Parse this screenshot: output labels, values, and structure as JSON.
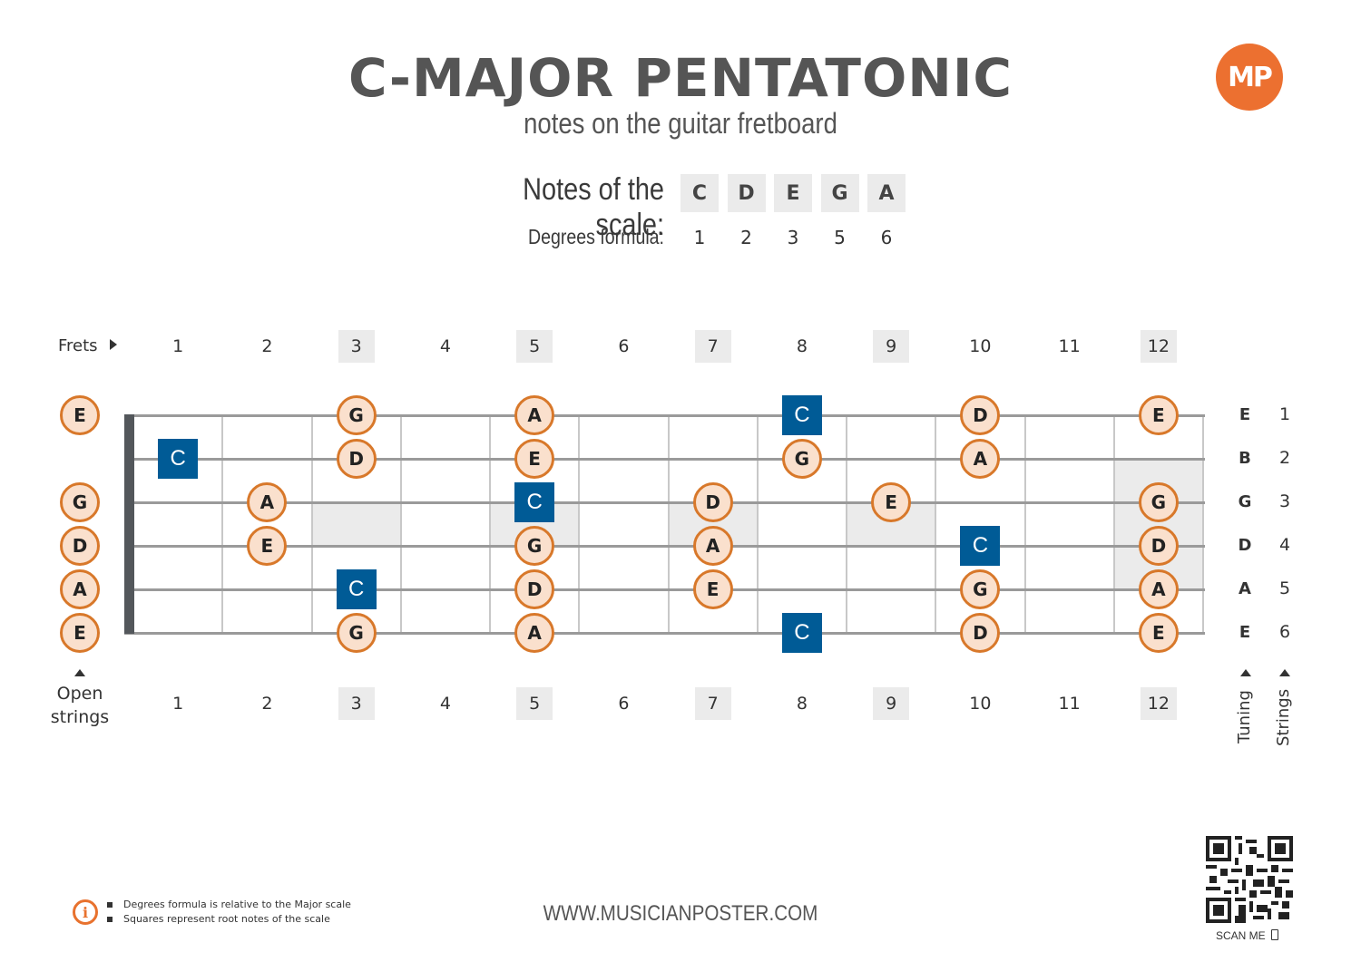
{
  "header": {
    "title": "C-MAJOR PENTATONIC",
    "subtitle": "notes on the guitar fretboard",
    "logo_text": "MP",
    "brand_color": "#ec7030"
  },
  "scale": {
    "notes_label": "Notes of the scale:",
    "degrees_label": "Degrees formula:",
    "notes": [
      "C",
      "D",
      "E",
      "G",
      "A"
    ],
    "degrees": [
      "1",
      "2",
      "3",
      "5",
      "6"
    ]
  },
  "fretboard": {
    "frets_label": "Frets",
    "fret_numbers": [
      "1",
      "2",
      "3",
      "4",
      "5",
      "6",
      "7",
      "8",
      "9",
      "10",
      "11",
      "12"
    ],
    "marked_frets": [
      3,
      5,
      7,
      9,
      12
    ],
    "open_strings_label_line1": "Open",
    "open_strings_label_line2": "strings",
    "open_strings": [
      "E",
      "",
      "G",
      "D",
      "A",
      "E"
    ],
    "tuning_label": "Tuning",
    "strings_label": "Strings",
    "tuning": [
      "E",
      "B",
      "G",
      "D",
      "A",
      "E"
    ],
    "string_numbers": [
      "1",
      "2",
      "3",
      "4",
      "5",
      "6"
    ],
    "colors": {
      "root": "#005b96",
      "note_fill": "#fae0cd",
      "note_border": "#d8782a"
    },
    "positions": [
      {
        "string": 1,
        "notes": [
          {
            "fret": 3,
            "note": "G"
          },
          {
            "fret": 5,
            "note": "A"
          },
          {
            "fret": 8,
            "note": "C",
            "root": true
          },
          {
            "fret": 10,
            "note": "D"
          },
          {
            "fret": 12,
            "note": "E"
          }
        ]
      },
      {
        "string": 2,
        "notes": [
          {
            "fret": 1,
            "note": "C",
            "root": true
          },
          {
            "fret": 3,
            "note": "D"
          },
          {
            "fret": 5,
            "note": "E"
          },
          {
            "fret": 8,
            "note": "G"
          },
          {
            "fret": 10,
            "note": "A"
          }
        ]
      },
      {
        "string": 3,
        "notes": [
          {
            "fret": 2,
            "note": "A"
          },
          {
            "fret": 5,
            "note": "C",
            "root": true
          },
          {
            "fret": 7,
            "note": "D"
          },
          {
            "fret": 9,
            "note": "E"
          },
          {
            "fret": 12,
            "note": "G"
          }
        ]
      },
      {
        "string": 4,
        "notes": [
          {
            "fret": 2,
            "note": "E"
          },
          {
            "fret": 5,
            "note": "G"
          },
          {
            "fret": 7,
            "note": "A"
          },
          {
            "fret": 10,
            "note": "C",
            "root": true
          },
          {
            "fret": 12,
            "note": "D"
          }
        ]
      },
      {
        "string": 5,
        "notes": [
          {
            "fret": 3,
            "note": "C",
            "root": true
          },
          {
            "fret": 5,
            "note": "D"
          },
          {
            "fret": 7,
            "note": "E"
          },
          {
            "fret": 10,
            "note": "G"
          },
          {
            "fret": 12,
            "note": "A"
          }
        ]
      },
      {
        "string": 6,
        "notes": [
          {
            "fret": 3,
            "note": "G"
          },
          {
            "fret": 5,
            "note": "A"
          },
          {
            "fret": 8,
            "note": "C",
            "root": true
          },
          {
            "fret": 10,
            "note": "D"
          },
          {
            "fret": 12,
            "note": "E"
          }
        ]
      }
    ]
  },
  "footer": {
    "info_items": [
      "Degrees formula is relative to the Major scale",
      "Squares represent root notes of the scale"
    ],
    "website": "WWW.MUSICIANPOSTER.COM",
    "scan_me": "SCAN ME"
  }
}
